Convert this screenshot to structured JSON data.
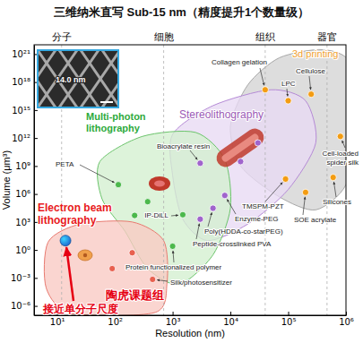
{
  "chart_data": {
    "type": "scatter",
    "title": "三维纳米直写 Sub-15 nm（精度提升1个数量级）",
    "x_label": "Resolution (nm)",
    "y_label": "Volume (μm³)",
    "log": true,
    "xlim": [
      4,
      1000000
    ],
    "ylim": [
      1e-07,
      1e+22
    ],
    "xticks": [
      {
        "value": 10,
        "label": "10¹"
      },
      {
        "value": 100,
        "label": "10²"
      },
      {
        "value": 1000,
        "label": "10³"
      },
      {
        "value": 10000,
        "label": "10⁴"
      },
      {
        "value": 100000,
        "label": "10⁵"
      },
      {
        "value": 1000000,
        "label": "10⁶"
      }
    ],
    "yticks": [
      {
        "value": 1e-06,
        "label": "10⁻⁶"
      },
      {
        "value": 0.001,
        "label": "10⁻³"
      },
      {
        "value": 1,
        "label": "10⁰"
      },
      {
        "value": 1000,
        "label": "10³"
      },
      {
        "value": 1000000,
        "label": "10⁶"
      },
      {
        "value": 1000000000.0,
        "label": "10⁹"
      },
      {
        "value": 1000000000000.0,
        "label": "10¹²"
      },
      {
        "value": 1000000000000000.0,
        "label": "10¹⁵"
      },
      {
        "value": 1e+18,
        "label": "10¹⁸"
      },
      {
        "value": 1e+21,
        "label": "10²¹"
      }
    ],
    "scale_marks": [
      {
        "label": "分子",
        "x": 12
      },
      {
        "label": "细胞",
        "x": 700
      },
      {
        "label": "组织",
        "x": 40000
      },
      {
        "label": "器官",
        "x": 470000
      }
    ],
    "regions": [
      {
        "name": "3d printing",
        "color": "#f0a030",
        "x": [
          10000,
          20000,
          70000,
          400000,
          1200000,
          1500000,
          1000000,
          300000,
          70000,
          15000
        ],
        "y": [
          20000000000000.0,
          5e+17,
          4e+20,
          3e+21,
          1e+20,
          20000000000000.0,
          10000000.0,
          20000,
          500000,
          1000000000.0
        ]
      },
      {
        "name": "Stereolithography",
        "color": "#9b59b6",
        "x": [
          1000,
          5000,
          50000,
          200000,
          300000,
          100000,
          20000,
          4000,
          1500,
          1000
        ],
        "y": [
          2500000000000.0,
          3000000000000000.0,
          1.5e+17,
          1e+16,
          300000000000.0,
          3000000,
          600,
          10,
          2000,
          100000000.0
        ]
      },
      {
        "name": "Multi-photon lithography",
        "color": "#2eaa3c",
        "x": [
          55,
          300,
          2500,
          8000,
          10000,
          5000,
          1300,
          370,
          150,
          60
        ],
        "y": [
          3000000000.0,
          1500000000000.0,
          4000000000000.0,
          5000000000.0,
          30000,
          0.3,
          0.0002,
          0.01,
          100,
          300000
        ]
      },
      {
        "name": "Electron beam lithography",
        "color": "#e8191c",
        "x": [
          7,
          25,
          200,
          700,
          800,
          500,
          18,
          6.5
        ],
        "y": [
          7,
          600,
          1000,
          10,
          0.0003,
          2e-07,
          1.5e-07,
          8e-05
        ]
      }
    ],
    "points": [
      {
        "x": 14,
        "y": 10,
        "color": "#1f6fd1"
      },
      {
        "x": 90,
        "y": 0.01,
        "color": "#e8604f"
      },
      {
        "x": 200,
        "y": 0.5,
        "color": "#e8604f"
      },
      {
        "x": 450,
        "y": 0.0007,
        "color": "#e8604f",
        "label": "Silk/photosensitizer"
      },
      {
        "x": 115,
        "y": 10000000.0,
        "color": "#4cb84c",
        "label": "PETA"
      },
      {
        "x": 370,
        "y": 150000,
        "color": "#4cb84c"
      },
      {
        "x": 1500,
        "y": 6000,
        "color": "#4cb84c",
        "label": "IP-DiLL"
      },
      {
        "x": 1000,
        "y": 2.5,
        "color": "#4cb84c",
        "label": "Protein functionalized polymer"
      },
      {
        "x": 220,
        "y": 5000,
        "color": "#4cb84c"
      },
      {
        "x": 3000,
        "y": 2000000000.0,
        "color": "#a064cc",
        "label": "Bioacrylate resin"
      },
      {
        "x": 8000,
        "y": 700000,
        "color": "#a064cc",
        "label": "Enzyme-PEG"
      },
      {
        "x": 5000,
        "y": 30000,
        "color": "#a064cc",
        "label": "Poly(HDDA-co-starPEG)"
      },
      {
        "x": 3000,
        "y": 2000,
        "color": "#a064cc",
        "label": "Peptide-crosslinked PVA"
      },
      {
        "x": 15000,
        "y": 3000000000.0,
        "color": "#a064cc"
      },
      {
        "x": 30000,
        "y": 300000000000.0,
        "color": "#a064cc"
      },
      {
        "x": 40000,
        "y": 1.5e+17,
        "color": "#f39c12",
        "label": "Collagen gelation"
      },
      {
        "x": 100000,
        "y": 1e+16,
        "color": "#f39c12",
        "label": "LPC"
      },
      {
        "x": 250000,
        "y": 5e+16,
        "color": "#f39c12",
        "label": "Cellulose"
      },
      {
        "x": 90000,
        "y": 40000000.0,
        "color": "#f39c12",
        "label": "TMSPM-PZT"
      },
      {
        "x": 600000,
        "y": 60000000.0,
        "color": "#f39c12",
        "label": "Silicones"
      },
      {
        "x": 200000,
        "y": 1500000,
        "color": "#f39c12",
        "label": "SOE acrylate"
      },
      {
        "x": 800000,
        "y": 1500000000000.0,
        "color": "#f39c12",
        "label": "Cell-loaded spider silk"
      }
    ],
    "annotations": [
      {
        "text": "14.0 nm",
        "color": "#ffffff"
      },
      {
        "text": "陶虎课题组",
        "color": "#e60012"
      },
      {
        "text": "接近单分子尺度",
        "color": "#e60012"
      }
    ]
  }
}
